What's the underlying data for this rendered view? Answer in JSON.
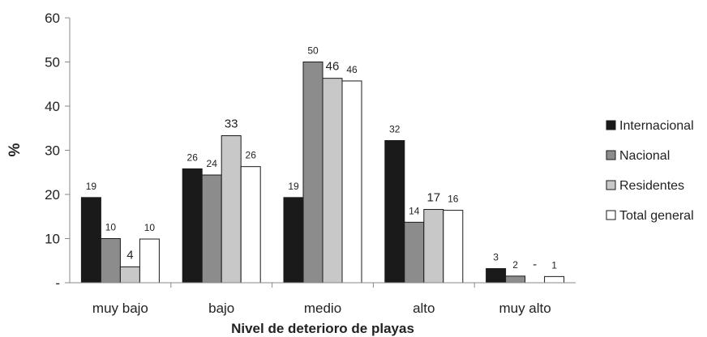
{
  "chart_data": {
    "type": "bar",
    "title": "",
    "xlabel": "Nivel de deterioro de playas",
    "ylabel": "%",
    "ylim": [
      0,
      60
    ],
    "yticks": [
      "-",
      "10",
      "20",
      "30",
      "40",
      "50",
      "60"
    ],
    "grid": false,
    "legend_position": "right",
    "categories": [
      "muy bajo",
      "bajo",
      "medio",
      "alto",
      "muy alto"
    ],
    "series": [
      {
        "name": "Internacional",
        "color": "#1a1a1a",
        "values": [
          19.3,
          25.8,
          19.3,
          32.2,
          3.2
        ],
        "labels": [
          "19",
          "26",
          "19",
          "32",
          "3"
        ]
      },
      {
        "name": "Nacional",
        "color": "#8c8c8c",
        "values": [
          10.0,
          24.4,
          50.0,
          13.7,
          1.5
        ],
        "labels": [
          "10",
          "24",
          "50",
          "14",
          "2"
        ]
      },
      {
        "name": "Residentes",
        "color": "#c8c8c8",
        "values": [
          3.6,
          33.3,
          46.3,
          16.6,
          0
        ],
        "labels": [
          "4",
          "33",
          "46",
          "17",
          "-"
        ]
      },
      {
        "name": "Total general",
        "color": "#ffffff",
        "values": [
          9.9,
          26.3,
          45.7,
          16.4,
          1.4
        ],
        "labels": [
          "10",
          "26",
          "46",
          "16",
          "1"
        ]
      }
    ]
  }
}
